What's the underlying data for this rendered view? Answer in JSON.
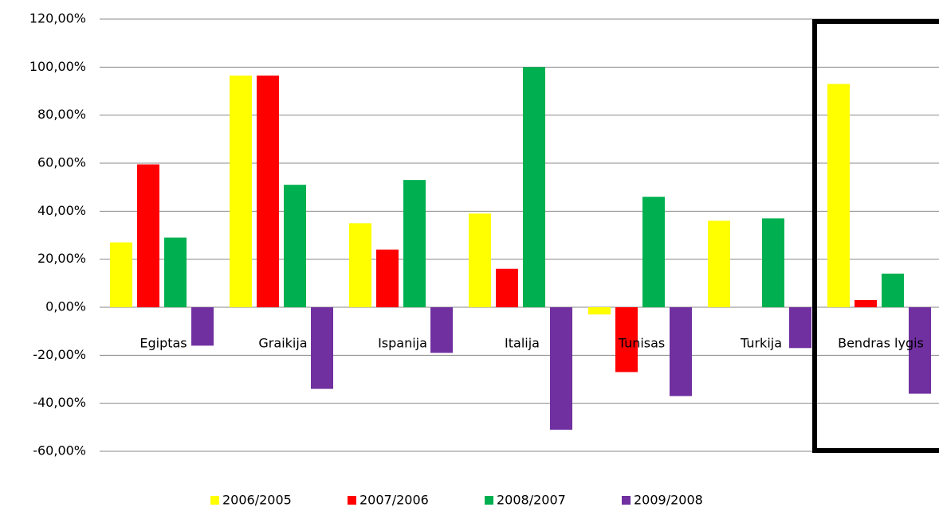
{
  "chart_data": {
    "type": "bar",
    "categories": [
      "Egiptas",
      "Graikija",
      "Ispanija",
      "Italija",
      "Tunisas",
      "Turkija",
      "Bendras lygis"
    ],
    "series": [
      {
        "name": "2006/2005",
        "color": "#ffff00",
        "values": [
          27,
          96.5,
          35,
          39,
          -3,
          36,
          93
        ]
      },
      {
        "name": "2007/2006",
        "color": "#ff0000",
        "values": [
          59.5,
          96.5,
          24,
          16,
          -27,
          0,
          3
        ]
      },
      {
        "name": "2008/2007",
        "color": "#00b050",
        "values": [
          29,
          51,
          53,
          100,
          46,
          37,
          14
        ]
      },
      {
        "name": "2009/2008",
        "color": "#7030a0",
        "values": [
          -16,
          -34,
          -19,
          -51,
          -37,
          -17,
          -36
        ]
      }
    ],
    "ylim": [
      -60,
      120
    ],
    "yticks": [
      {
        "value": -60,
        "label": "-60,00%"
      },
      {
        "value": -40,
        "label": "-40,00%"
      },
      {
        "value": -20,
        "label": "-20,00%"
      },
      {
        "value": 0,
        "label": "0,00%"
      },
      {
        "value": 20,
        "label": "20,00%"
      },
      {
        "value": 40,
        "label": "40,00%"
      },
      {
        "value": 60,
        "label": "60,00%"
      },
      {
        "value": 80,
        "label": "80,00%"
      },
      {
        "value": 100,
        "label": "100,00%"
      },
      {
        "value": 120,
        "label": "120,00%"
      }
    ],
    "grid": true
  }
}
